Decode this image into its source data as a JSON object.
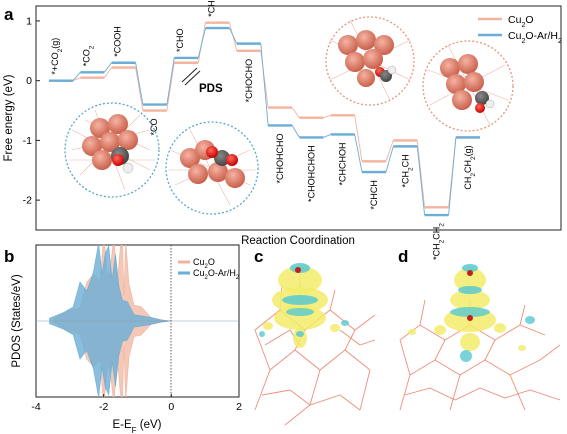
{
  "chart_data": [
    {
      "panel": "a",
      "type": "line",
      "ylabel": "Free energy (eV)",
      "xlabel": "Reaction Coordination",
      "ylim": [
        -2.5,
        1.25
      ],
      "yticks": [
        1,
        0,
        -1,
        -2
      ],
      "legend_position": "top-right",
      "annotation": "PDS",
      "states": [
        "*+CO2(g)",
        "*CO2",
        "*COOH",
        "*CO",
        "*CHO",
        "*CHOCO",
        "*CHOCHO",
        "*CHOHCHO",
        "*CHOHCHOH",
        "*CHCHOH",
        "*CHCH",
        "*CH2CH",
        "*CH2CH2",
        "CH2CH2(g)"
      ],
      "state_labels": [
        {
          "pre": "*+CO",
          "sub": "2",
          "post": "(g)"
        },
        {
          "pre": "*CO",
          "sub": "2",
          "post": ""
        },
        {
          "pre": "*COOH",
          "sub": "",
          "post": ""
        },
        {
          "pre": "*CO",
          "sub": "",
          "post": ""
        },
        {
          "pre": "*CHO",
          "sub": "",
          "post": ""
        },
        {
          "pre": "*CHOCO",
          "sub": "",
          "post": ""
        },
        {
          "pre": "*CHOCHO",
          "sub": "",
          "post": ""
        },
        {
          "pre": "*CHOHCHO",
          "sub": "",
          "post": ""
        },
        {
          "pre": "*CHOHCHOH",
          "sub": "",
          "post": ""
        },
        {
          "pre": "*CHCHOH",
          "sub": "",
          "post": ""
        },
        {
          "pre": "*CHCH",
          "sub": "",
          "post": ""
        },
        {
          "pre": "*CH",
          "sub": "2",
          "post": "CH"
        },
        {
          "pre": "*CH",
          "sub": "2",
          "post": "CH",
          "sub2": "2"
        },
        {
          "pre": "CH",
          "sub": "2",
          "post": "CH",
          "sub2": "2",
          "post2": "(g)"
        }
      ],
      "series": [
        {
          "name": "Cu2O",
          "legend_pre": "Cu",
          "legend_sub": "2",
          "legend_post": "O",
          "color": "#f2b49e",
          "values": [
            0.0,
            0.05,
            0.22,
            -0.5,
            0.3,
            0.97,
            0.5,
            -0.45,
            -0.62,
            -0.58,
            -1.35,
            -1.0,
            -2.12,
            -0.95
          ]
        },
        {
          "name": "Cu2O-Ar/H2",
          "legend_pre": "Cu",
          "legend_sub": "2",
          "legend_post": "O-Ar/H",
          "legend_sub2": "2",
          "color": "#6aaed6",
          "values": [
            0.0,
            0.14,
            0.3,
            -0.4,
            0.38,
            0.88,
            0.62,
            -0.75,
            -0.95,
            -0.9,
            -1.53,
            -1.1,
            -2.25,
            -0.95
          ]
        }
      ]
    },
    {
      "panel": "b",
      "type": "area",
      "ylabel": "PDOS (States/eV)",
      "xlabel": "E-E_F (eV)",
      "xlabel_parts": {
        "pre": "E-E",
        "sub": "F",
        "post": " (eV)"
      },
      "xlim": [
        -4,
        2
      ],
      "xticks": [
        -4,
        -2,
        0,
        2
      ],
      "legend_position": "top-right",
      "vertical_line_x": 0,
      "series": [
        {
          "name": "Cu2O",
          "legend_pre": "Cu",
          "legend_sub": "2",
          "legend_post": "O",
          "color": "#f2b49e",
          "x": [
            -3.5,
            -3.0,
            -2.7,
            -2.5,
            -2.3,
            -2.1,
            -2.0,
            -1.9,
            -1.8,
            -1.7,
            -1.6,
            -1.5,
            -1.45,
            -1.4,
            -1.35,
            -1.25,
            -1.1,
            -0.9,
            -0.6,
            -0.3,
            0.0
          ],
          "values": [
            0.02,
            0.12,
            0.28,
            0.45,
            0.6,
            0.8,
            0.95,
            0.7,
            0.85,
            0.9,
            0.75,
            1.0,
            1.0,
            0.55,
            0.9,
            0.5,
            0.3,
            0.15,
            0.06,
            0.02,
            0.0
          ]
        },
        {
          "name": "Cu2O-Ar/H2",
          "legend_pre": "Cu",
          "legend_sub": "2",
          "legend_post": "O-Ar/H",
          "legend_sub2": "2",
          "color": "#6aaed6",
          "x": [
            -3.6,
            -3.2,
            -2.9,
            -2.7,
            -2.5,
            -2.3,
            -2.15,
            -2.05,
            -1.95,
            -1.85,
            -1.75,
            -1.65,
            -1.55,
            -1.45,
            -1.3,
            -1.1,
            -0.9,
            -0.6,
            -0.3,
            0.0
          ],
          "values": [
            0.03,
            0.12,
            0.25,
            0.4,
            0.55,
            0.7,
            0.85,
            1.0,
            0.8,
            0.95,
            0.85,
            0.7,
            0.55,
            0.35,
            0.2,
            0.12,
            0.07,
            0.04,
            0.02,
            0.0
          ]
        }
      ]
    }
  ],
  "panels": {
    "a": "a",
    "b": "b",
    "c": "c",
    "d": "d"
  }
}
